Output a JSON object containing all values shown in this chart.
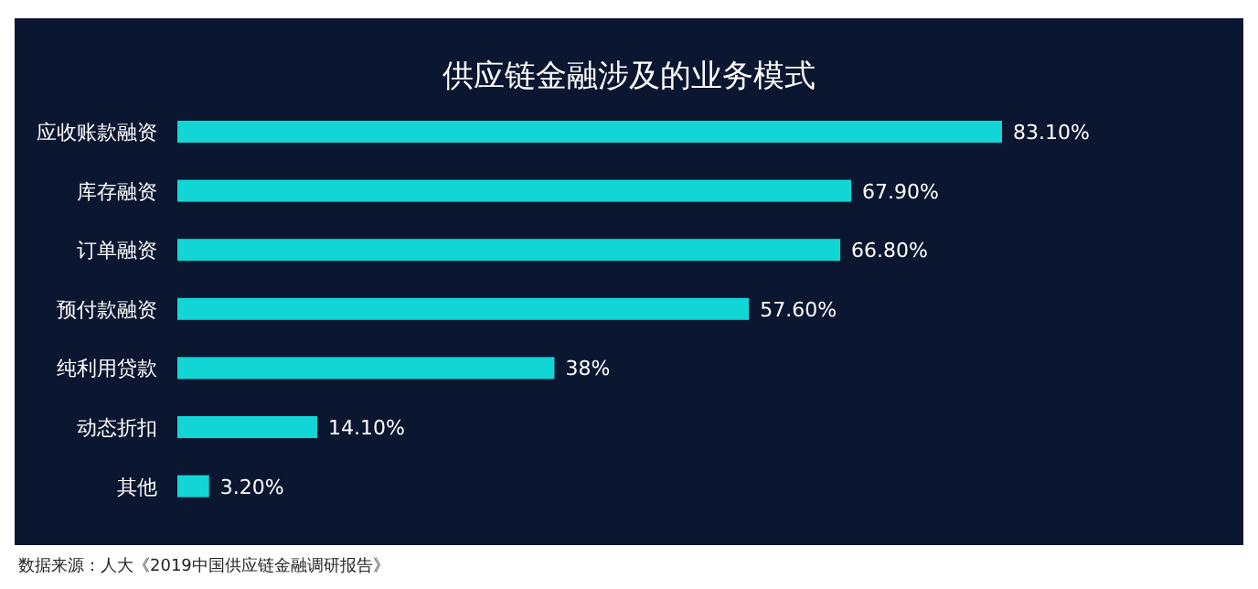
{
  "chart_data": {
    "type": "bar",
    "orientation": "horizontal",
    "title": "供应链金融涉及的业务模式",
    "categories": [
      "应收账款融资",
      "库存融资",
      "订单融资",
      "预付款融资",
      "纯利用贷款",
      "动态折扣",
      "其他"
    ],
    "values": [
      83.1,
      67.9,
      66.8,
      57.6,
      38,
      14.1,
      3.2
    ],
    "value_labels": [
      "83.10%",
      "67.90%",
      "66.80%",
      "57.60%",
      "38%",
      "14.10%",
      "3.20%"
    ],
    "color": "#12d6d6",
    "annotations": [
      "数据来源：人大《2019中国供应链金融调研报告》"
    ]
  }
}
